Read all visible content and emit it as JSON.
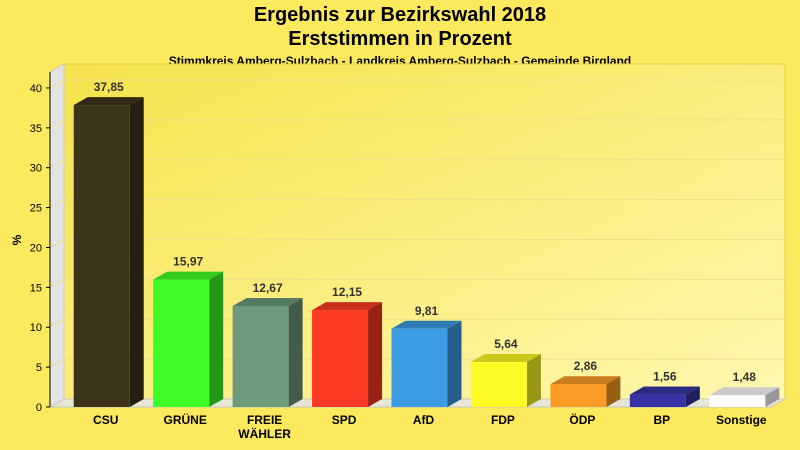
{
  "chart_data": {
    "type": "bar",
    "title": "Ergebnis zur Bezirkswahl 2018",
    "subtitle": "Erststimmen in Prozent",
    "caption": "Stimmkreis Amberg-Sulzbach - Landkreis Amberg-Sulzbach - Gemeinde Birgland",
    "ylabel": "%",
    "xlabel": "",
    "ylim": [
      0,
      42
    ],
    "yticks": [
      0,
      5,
      10,
      15,
      20,
      25,
      30,
      35,
      40
    ],
    "grid": true,
    "categories": [
      "CSU",
      "GRÜNE",
      "FREIE WÄHLER",
      "SPD",
      "AfD",
      "FDP",
      "ÖDP",
      "BP",
      "Sonstige"
    ],
    "category_lines": [
      [
        "CSU"
      ],
      [
        "GRÜNE"
      ],
      [
        "FREIE",
        "WÄHLER"
      ],
      [
        "SPD"
      ],
      [
        "AfD"
      ],
      [
        "FDP"
      ],
      [
        "ÖDP"
      ],
      [
        "BP"
      ],
      [
        "Sonstige"
      ]
    ],
    "values": [
      37.85,
      15.97,
      12.67,
      12.15,
      9.81,
      5.64,
      2.86,
      1.56,
      1.48
    ],
    "value_labels": [
      "37,85",
      "15,97",
      "12,67",
      "12,15",
      "9,81",
      "5,64",
      "2,86",
      "1,56",
      "1,48"
    ],
    "colors": [
      "#3c3418",
      "#3efc24",
      "#6c9a7c",
      "#fc3a24",
      "#3c9ce4",
      "#fcfc24",
      "#fc9c24",
      "#3434a4",
      "#fcfcfc"
    ]
  }
}
